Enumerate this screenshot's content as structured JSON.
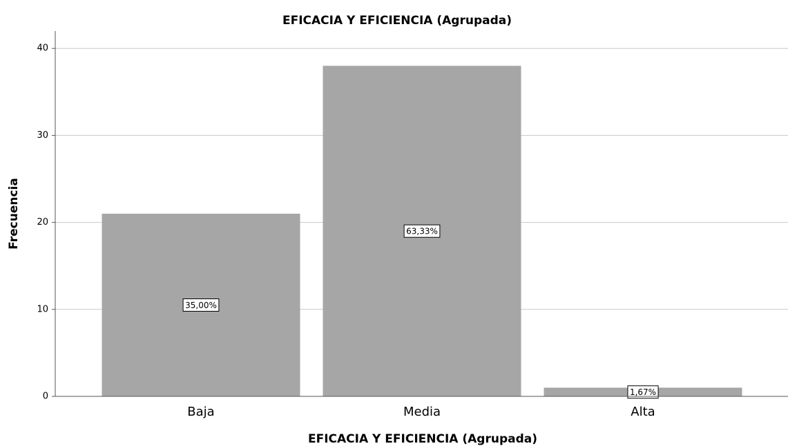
{
  "chart_data": {
    "type": "bar",
    "title": "EFICACIA Y EFICIENCIA (Agrupada)",
    "x_label": "EFICACIA Y EFICIENCIA (Agrupada)",
    "y_label": "Frecuencia",
    "categories": [
      "Baja",
      "Media",
      "Alta"
    ],
    "values": [
      21,
      38,
      1
    ],
    "percent_labels": [
      "35,00%",
      "63,33%",
      "1,67%"
    ],
    "color": "#a6a6a6",
    "ylim": [
      0,
      42
    ],
    "yticks": [
      0,
      10,
      20,
      30,
      40
    ],
    "grid": true
  }
}
